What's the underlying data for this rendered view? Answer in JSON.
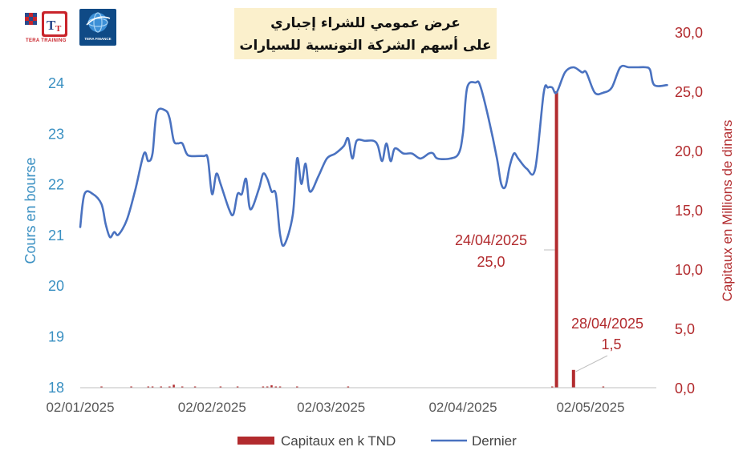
{
  "title_lines": [
    "عرض عمومي للشراء إجباري",
    "على أسهم الشركة التونسية للسيارات"
  ],
  "logos": {
    "left_caption": "TERA TRAINING",
    "right_caption": "TERA FINANCE"
  },
  "chart_data": {
    "type": "line+bar",
    "y_left": {
      "label": "Cours en bourse",
      "range": [
        18,
        24.3
      ],
      "ticks": [
        "18",
        "19",
        "20",
        "21",
        "22",
        "23",
        "24"
      ],
      "color": "#3a90c2"
    },
    "y_right": {
      "label": "Capitaux en Millions de dinars",
      "range": [
        0,
        30
      ],
      "ticks": [
        "0,0",
        "5,0",
        "10,0",
        "15,0",
        "20,0",
        "25,0",
        "30,0"
      ],
      "color": "#b22b2e"
    },
    "x_axis": {
      "start": "2025-01-02",
      "end": "2025-05-23",
      "tick_labels": [
        "02/01/2025",
        "02/02/2025",
        "02/03/2025",
        "02/04/2025",
        "02/05/2025"
      ],
      "tick_dates": [
        "2025-01-02",
        "2025-02-02",
        "2025-03-02",
        "2025-04-02",
        "2025-05-02"
      ]
    },
    "series": [
      {
        "name": "Dernier",
        "type": "line",
        "color": "#4a72c0",
        "points": [
          [
            "2025-01-02",
            21.15
          ],
          [
            "2025-01-03",
            21.8
          ],
          [
            "2025-01-05",
            21.8
          ],
          [
            "2025-01-07",
            21.6
          ],
          [
            "2025-01-08",
            21.2
          ],
          [
            "2025-01-09",
            20.95
          ],
          [
            "2025-01-10",
            21.05
          ],
          [
            "2025-01-11",
            21.0
          ],
          [
            "2025-01-13",
            21.3
          ],
          [
            "2025-01-15",
            21.9
          ],
          [
            "2025-01-17",
            22.6
          ],
          [
            "2025-01-18",
            22.45
          ],
          [
            "2025-01-19",
            22.6
          ],
          [
            "2025-01-20",
            23.4
          ],
          [
            "2025-01-22",
            23.45
          ],
          [
            "2025-01-23",
            23.3
          ],
          [
            "2025-01-24",
            22.85
          ],
          [
            "2025-01-25",
            22.8
          ],
          [
            "2025-01-26",
            22.8
          ],
          [
            "2025-01-27",
            22.6
          ],
          [
            "2025-01-28",
            22.55
          ],
          [
            "2025-01-31",
            22.55
          ],
          [
            "2025-02-01",
            22.5
          ],
          [
            "2025-02-02",
            21.8
          ],
          [
            "2025-02-03",
            22.2
          ],
          [
            "2025-02-04",
            22.0
          ],
          [
            "2025-02-06",
            21.5
          ],
          [
            "2025-02-07",
            21.4
          ],
          [
            "2025-02-08",
            21.8
          ],
          [
            "2025-02-09",
            21.8
          ],
          [
            "2025-02-10",
            22.1
          ],
          [
            "2025-02-11",
            21.5
          ],
          [
            "2025-02-13",
            21.9
          ],
          [
            "2025-02-14",
            22.2
          ],
          [
            "2025-02-15",
            22.1
          ],
          [
            "2025-02-16",
            21.85
          ],
          [
            "2025-02-17",
            21.8
          ],
          [
            "2025-02-18",
            21.0
          ],
          [
            "2025-02-19",
            20.8
          ],
          [
            "2025-02-21",
            21.4
          ],
          [
            "2025-02-22",
            22.5
          ],
          [
            "2025-02-23",
            22.0
          ],
          [
            "2025-02-24",
            22.4
          ],
          [
            "2025-02-25",
            21.85
          ],
          [
            "2025-02-27",
            22.15
          ],
          [
            "2025-03-01",
            22.5
          ],
          [
            "2025-03-03",
            22.6
          ],
          [
            "2025-03-05",
            22.75
          ],
          [
            "2025-03-06",
            22.9
          ],
          [
            "2025-03-07",
            22.5
          ],
          [
            "2025-03-08",
            22.85
          ],
          [
            "2025-03-10",
            22.85
          ],
          [
            "2025-03-12",
            22.85
          ],
          [
            "2025-03-13",
            22.75
          ],
          [
            "2025-03-14",
            22.45
          ],
          [
            "2025-03-15",
            22.8
          ],
          [
            "2025-03-16",
            22.45
          ],
          [
            "2025-03-17",
            22.7
          ],
          [
            "2025-03-19",
            22.6
          ],
          [
            "2025-03-21",
            22.6
          ],
          [
            "2025-03-23",
            22.5
          ],
          [
            "2025-03-25",
            22.6
          ],
          [
            "2025-03-26",
            22.6
          ],
          [
            "2025-03-27",
            22.5
          ],
          [
            "2025-03-30",
            22.5
          ],
          [
            "2025-04-01",
            22.6
          ],
          [
            "2025-04-02",
            23.0
          ],
          [
            "2025-04-03",
            23.9
          ],
          [
            "2025-04-05",
            24.0
          ],
          [
            "2025-04-06",
            23.95
          ],
          [
            "2025-04-08",
            23.3
          ],
          [
            "2025-04-10",
            22.5
          ],
          [
            "2025-04-11",
            22.0
          ],
          [
            "2025-04-12",
            21.95
          ],
          [
            "2025-04-13",
            22.35
          ],
          [
            "2025-04-14",
            22.6
          ],
          [
            "2025-04-15",
            22.5
          ],
          [
            "2025-04-17",
            22.3
          ],
          [
            "2025-04-19",
            22.3
          ],
          [
            "2025-04-21",
            23.8
          ],
          [
            "2025-04-22",
            23.9
          ],
          [
            "2025-04-23",
            23.9
          ],
          [
            "2025-04-24",
            23.8
          ],
          [
            "2025-04-26",
            24.2
          ],
          [
            "2025-04-28",
            24.3
          ],
          [
            "2025-04-30",
            24.2
          ],
          [
            "2025-05-01",
            24.2
          ],
          [
            "2025-05-03",
            23.8
          ],
          [
            "2025-05-05",
            23.8
          ],
          [
            "2025-05-07",
            23.9
          ],
          [
            "2025-05-09",
            24.3
          ],
          [
            "2025-05-11",
            24.3
          ],
          [
            "2025-05-13",
            24.3
          ],
          [
            "2025-05-15",
            24.3
          ],
          [
            "2025-05-16",
            24.25
          ],
          [
            "2025-05-17",
            23.95
          ],
          [
            "2025-05-20",
            23.95
          ]
        ]
      },
      {
        "name": "Capitaux en k TND",
        "type": "bar",
        "color": "#b22b2e",
        "points": [
          [
            "2025-01-07",
            0.05
          ],
          [
            "2025-01-14",
            0.05
          ],
          [
            "2025-01-18",
            0.1
          ],
          [
            "2025-01-19",
            0.05
          ],
          [
            "2025-01-21",
            0.1
          ],
          [
            "2025-01-23",
            0.05
          ],
          [
            "2025-01-24",
            0.25
          ],
          [
            "2025-01-26",
            0.05
          ],
          [
            "2025-01-29",
            0.1
          ],
          [
            "2025-02-04",
            0.05
          ],
          [
            "2025-02-08",
            0.05
          ],
          [
            "2025-02-14",
            0.1
          ],
          [
            "2025-02-15",
            0.05
          ],
          [
            "2025-02-16",
            0.2
          ],
          [
            "2025-02-17",
            0.1
          ],
          [
            "2025-02-18",
            0.05
          ],
          [
            "2025-02-22",
            0.05
          ],
          [
            "2025-03-06",
            0.05
          ],
          [
            "2025-04-23",
            0.1
          ],
          [
            "2025-04-24",
            25.0
          ],
          [
            "2025-04-28",
            1.5
          ],
          [
            "2025-05-05",
            0.1
          ]
        ]
      }
    ],
    "annotations": [
      {
        "date_label": "24/04/2025",
        "value_label": "25,0",
        "date": "2025-04-24",
        "value": 25.0
      },
      {
        "date_label": "28/04/2025",
        "value_label": "1,5",
        "date": "2025-04-28",
        "value": 1.5
      }
    ],
    "legend": {
      "position": "bottom-center",
      "entries": [
        "Capitaux en k TND",
        "Dernier"
      ]
    }
  }
}
